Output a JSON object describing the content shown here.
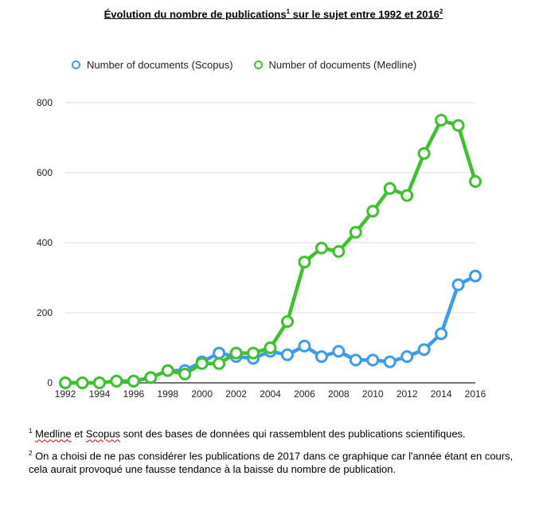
{
  "title": {
    "text": "Évolution du nombre de publications",
    "sup1": "1",
    "middle": " sur le sujet entre 1992 et 2016",
    "sup2": "2"
  },
  "footnotes": {
    "f1_marker": "1",
    "f1_word1": "Medline",
    "f1_mid": " et ",
    "f1_word2": "Scopus",
    "f1_rest": " sont des bases de données qui rassemblent des publications scientifiques.",
    "f2_marker": "2",
    "f2_text": " On a choisi de ne pas considérer les publications de 2017 dans ce graphique car l'année étant en cours, cela aurait provoqué une fausse tendance à la baisse du nombre de publication."
  },
  "chart_data": {
    "type": "line",
    "x": [
      1992,
      1993,
      1994,
      1995,
      1996,
      1997,
      1998,
      1999,
      2000,
      2001,
      2002,
      2003,
      2004,
      2005,
      2006,
      2007,
      2008,
      2009,
      2010,
      2011,
      2012,
      2013,
      2014,
      2015,
      2016
    ],
    "x_tick_labels": [
      "1992",
      "1994",
      "1996",
      "1998",
      "2000",
      "2002",
      "2004",
      "2006",
      "2008",
      "2010",
      "2012",
      "2014",
      "2016"
    ],
    "y_tick_labels": [
      "0",
      "200",
      "400",
      "600",
      "800"
    ],
    "ylim": [
      0,
      800
    ],
    "grid": true,
    "legend_position": "top",
    "series": [
      {
        "name": "Number of documents (Scopus)",
        "color": "#3a9bf0",
        "values": [
          0,
          0,
          0,
          5,
          5,
          15,
          35,
          35,
          60,
          85,
          75,
          70,
          90,
          80,
          105,
          75,
          90,
          65,
          65,
          60,
          75,
          95,
          140,
          280,
          305
        ]
      },
      {
        "name": "Number of documents (Medline)",
        "color": "#3ec22b",
        "values": [
          0,
          0,
          0,
          5,
          5,
          15,
          35,
          25,
          55,
          55,
          85,
          85,
          100,
          175,
          345,
          385,
          375,
          430,
          490,
          555,
          535,
          655,
          750,
          735,
          575
        ]
      }
    ]
  }
}
